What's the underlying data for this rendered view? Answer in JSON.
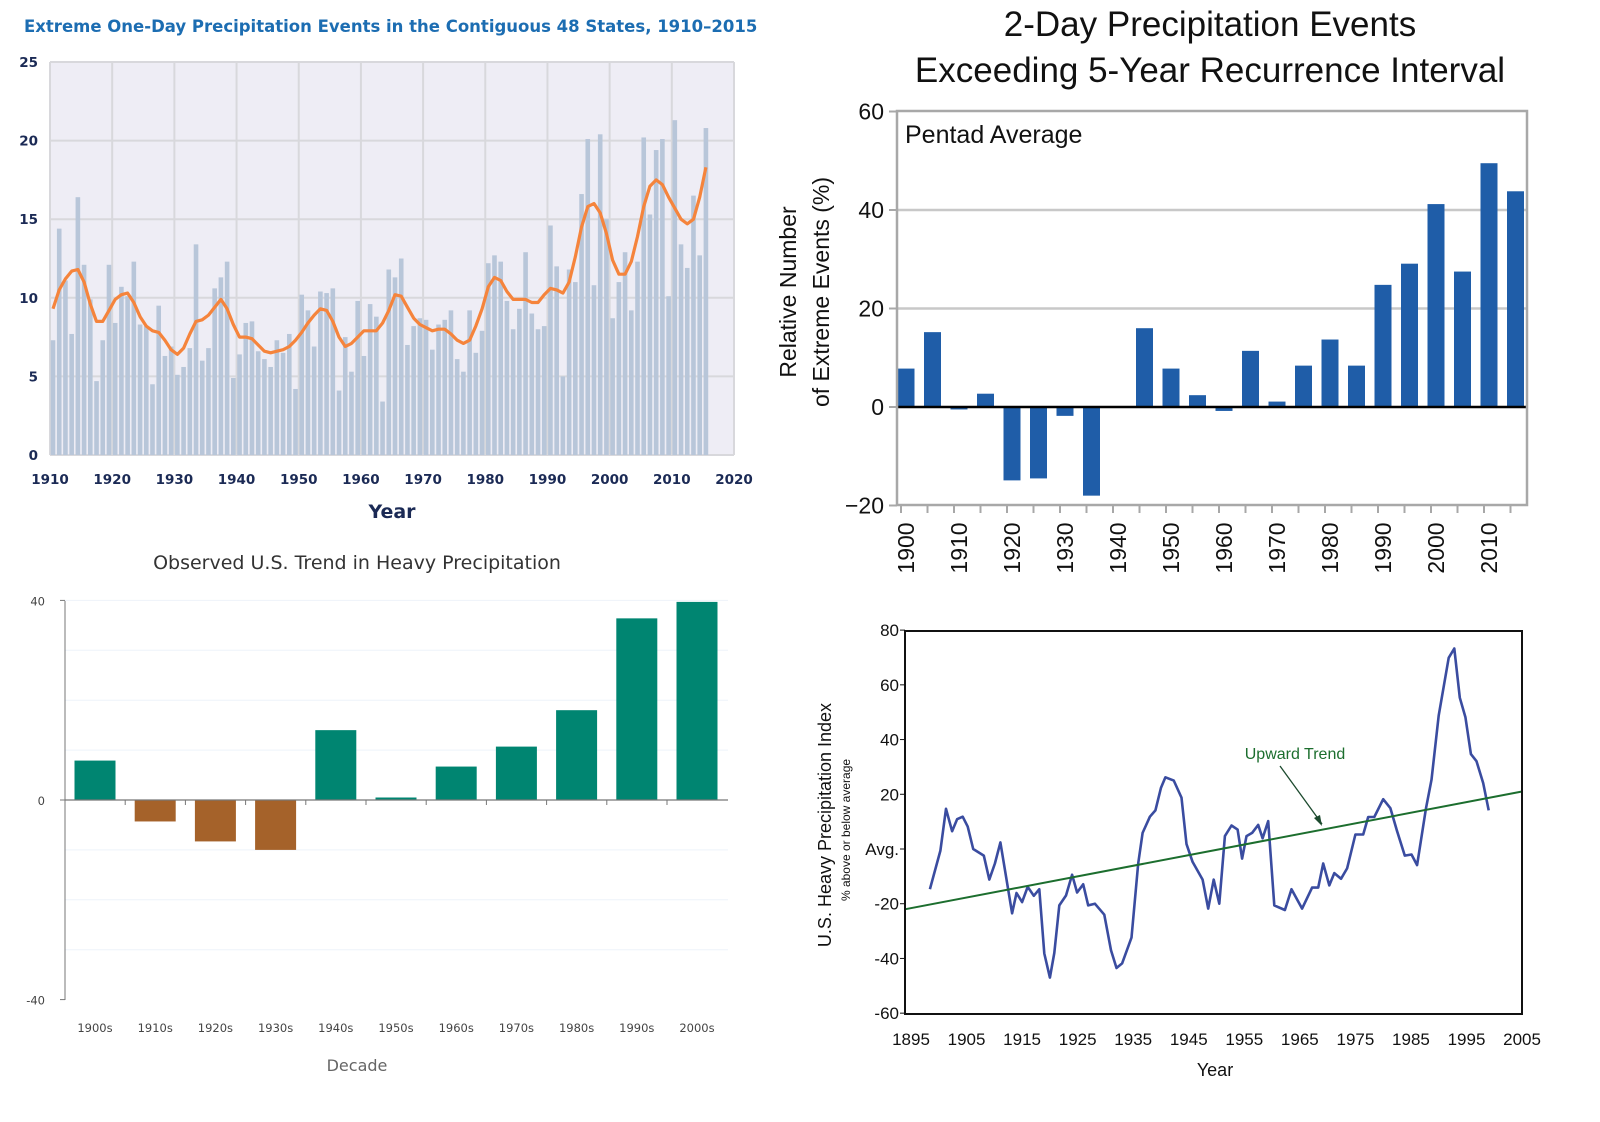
{
  "chart_data": [
    {
      "type": "bar+line",
      "title": "Extreme One-Day Precipitation Events in the Contiguous 48 States, 1910–2015",
      "xlabel": "Year",
      "ylabel": "",
      "xlim": [
        1910,
        2020
      ],
      "ylim": [
        0,
        25
      ],
      "xticks": [
        "1910",
        "1920",
        "1930",
        "1940",
        "1950",
        "1960",
        "1970",
        "1980",
        "1990",
        "2000",
        "2010",
        "2020"
      ],
      "yticks": [
        "0",
        "5",
        "10",
        "15",
        "20",
        "25"
      ],
      "grid": true,
      "colors": {
        "bars": "#b8c6d9",
        "line": "#f5843c",
        "plot_bg": "#eeedf5",
        "title": "#1c6db2"
      },
      "x": [
        1910,
        1911,
        1912,
        1913,
        1914,
        1915,
        1916,
        1917,
        1918,
        1919,
        1920,
        1921,
        1922,
        1923,
        1924,
        1925,
        1926,
        1927,
        1928,
        1929,
        1930,
        1931,
        1932,
        1933,
        1934,
        1935,
        1936,
        1937,
        1938,
        1939,
        1940,
        1941,
        1942,
        1943,
        1944,
        1945,
        1946,
        1947,
        1948,
        1949,
        1950,
        1951,
        1952,
        1953,
        1954,
        1955,
        1956,
        1957,
        1958,
        1959,
        1960,
        1961,
        1962,
        1963,
        1964,
        1965,
        1966,
        1967,
        1968,
        1969,
        1970,
        1971,
        1972,
        1973,
        1974,
        1975,
        1976,
        1977,
        1978,
        1979,
        1980,
        1981,
        1982,
        1983,
        1984,
        1985,
        1986,
        1987,
        1988,
        1989,
        1990,
        1991,
        1992,
        1993,
        1994,
        1995,
        1996,
        1997,
        1998,
        1999,
        2000,
        2001,
        2002,
        2003,
        2004,
        2005,
        2006,
        2007,
        2008,
        2009,
        2010,
        2011,
        2012,
        2013,
        2014,
        2015
      ],
      "series": [
        {
          "kind": "bar",
          "values": [
            7.3,
            14.4,
            11.1,
            7.7,
            16.4,
            12.1,
            9.9,
            4.7,
            7.3,
            12.1,
            8.4,
            10.7,
            10.1,
            12.3,
            8.3,
            8.2,
            4.5,
            9.5,
            6.3,
            6.9,
            5.1,
            5.6,
            6.8,
            13.4,
            6.0,
            6.8,
            10.6,
            11.3,
            12.3,
            4.9,
            6.4,
            8.4,
            8.5,
            6.6,
            6.1,
            5.6,
            7.3,
            6.5,
            7.7,
            4.2,
            10.2,
            9.2,
            6.9,
            10.4,
            10.3,
            10.6,
            4.1,
            7.5,
            5.3,
            9.8,
            6.3,
            9.6,
            8.8,
            3.4,
            11.8,
            11.3,
            12.5,
            7.0,
            8.2,
            8.7,
            8.6,
            6.7,
            8.3,
            8.6,
            9.2,
            6.1,
            5.3,
            9.2,
            6.5,
            7.9,
            12.2,
            12.7,
            12.3,
            9.8,
            8.0,
            9.3,
            12.9,
            9.0,
            8.0,
            8.2,
            14.6,
            12.0,
            5.0,
            11.8,
            11.0,
            16.6,
            20.1,
            10.8,
            20.4,
            15.0,
            8.7,
            11.0,
            12.9,
            9.2,
            12.3,
            20.2,
            15.3,
            19.4,
            20.1,
            10.1,
            21.3,
            13.4,
            11.9,
            16.5,
            12.7,
            20.8
          ]
        },
        {
          "kind": "line",
          "values": [
            9.3,
            10.5,
            11.2,
            11.7,
            11.8,
            11.0,
            9.6,
            8.5,
            8.5,
            9.2,
            9.9,
            10.2,
            10.3,
            9.7,
            8.8,
            8.2,
            7.9,
            7.8,
            7.3,
            6.7,
            6.4,
            6.8,
            7.7,
            8.5,
            8.6,
            8.9,
            9.4,
            9.9,
            9.3,
            8.3,
            7.5,
            7.5,
            7.4,
            7.0,
            6.6,
            6.5,
            6.6,
            6.7,
            6.9,
            7.3,
            7.8,
            8.4,
            8.9,
            9.3,
            9.2,
            8.5,
            7.5,
            6.9,
            7.1,
            7.5,
            7.9,
            7.9,
            7.9,
            8.4,
            9.2,
            10.2,
            10.1,
            9.4,
            8.7,
            8.3,
            8.1,
            7.9,
            8.0,
            8.0,
            7.7,
            7.3,
            7.1,
            7.3,
            8.2,
            9.3,
            10.7,
            11.3,
            11.1,
            10.4,
            9.9,
            9.9,
            9.9,
            9.7,
            9.7,
            10.2,
            10.6,
            10.5,
            10.3,
            11.0,
            12.6,
            14.5,
            15.8,
            16.0,
            15.4,
            14.1,
            12.4,
            11.5,
            11.5,
            12.3,
            13.9,
            15.8,
            17.1,
            17.5,
            17.2,
            16.4,
            15.7,
            15.0,
            14.7,
            15.0,
            16.4,
            18.3
          ]
        }
      ]
    },
    {
      "type": "bar",
      "title": [
        "2-Day Precipitation Events",
        "Exceeding 5-Year Recurrence Interval"
      ],
      "ylabel": [
        "Relative Number",
        "of Extreme Events (%)"
      ],
      "xlabel": "",
      "annotation": "Pentad Average",
      "ylim": [
        -20,
        60
      ],
      "yticks": [
        "−20",
        "0",
        "20",
        "40",
        "60"
      ],
      "xticks": [
        "1900",
        "1910",
        "1920",
        "1930",
        "1940",
        "1950",
        "1960",
        "1970",
        "1980",
        "1990",
        "2000",
        "2010"
      ],
      "grid": true,
      "colors": {
        "bars": "#1f5da8"
      },
      "categories": [
        1900,
        1905,
        1910,
        1915,
        1920,
        1925,
        1930,
        1935,
        1940,
        1945,
        1950,
        1955,
        1960,
        1965,
        1970,
        1975,
        1980,
        1985,
        1990,
        1995,
        2000,
        2005,
        2010,
        2015
      ],
      "values": [
        7.8,
        15.2,
        -0.5,
        2.7,
        -14.9,
        -14.5,
        -1.8,
        -18.0,
        0,
        16.0,
        7.8,
        2.4,
        -0.8,
        11.4,
        1.1,
        8.4,
        13.7,
        8.4,
        24.8,
        29.1,
        41.2,
        27.5,
        49.5,
        43.8
      ]
    },
    {
      "type": "bar",
      "title": "Observed U.S. Trend in Heavy Precipitation",
      "xlabel": "Decade",
      "ylabel": "",
      "ylim": [
        -40,
        40
      ],
      "yticks": [
        "-40",
        "0",
        "40"
      ],
      "grid": true,
      "colors": {
        "positive": "#008571",
        "negative": "#a5622a"
      },
      "categories": [
        "1900s",
        "1910s",
        "1920s",
        "1930s",
        "1940s",
        "1950s",
        "1960s",
        "1970s",
        "1980s",
        "1990s",
        "2000s"
      ],
      "values": [
        7.9,
        -4.3,
        -8.3,
        -10.0,
        14.0,
        0.5,
        6.7,
        10.7,
        18.0,
        36.4,
        39.7
      ]
    },
    {
      "type": "line",
      "xlabel": "Year",
      "ylabel": "U.S. Heavy Precipitation Index",
      "ylabel_sub": "% above or below average",
      "annotation": "Upward Trend",
      "xlim": [
        1895,
        2005
      ],
      "ylim": [
        -60,
        80
      ],
      "xticks": [
        "1895",
        "1905",
        "1915",
        "1925",
        "1935",
        "1945",
        "1955",
        "1965",
        "1975",
        "1985",
        "1995",
        "2005"
      ],
      "yticks": [
        "-60",
        "-40",
        "-20",
        "Avg.",
        "20",
        "40",
        "60",
        "80"
      ],
      "colors": {
        "index": "#3a4ca0",
        "trend": "#1c6e2e"
      },
      "series": [
        {
          "kind": "index",
          "x": [
            1898.4,
            1900.3,
            1901.3,
            1902.4,
            1903.3,
            1904.3,
            1905.2,
            1906.2,
            1908.1,
            1909.1,
            1910.1,
            1911.1,
            1913.2,
            1914,
            1915,
            1916,
            1917.1,
            1918.1,
            1919,
            1920,
            1920.8,
            1921.7,
            1922.9,
            1924,
            1924.9,
            1926,
            1926.9,
            1928.1,
            1929.8,
            1931,
            1932,
            1933,
            1934.7,
            1935.9,
            1936.7,
            1938,
            1939,
            1940,
            1940.8,
            1942.3,
            1943.7,
            1944.6,
            1945.7,
            1947.5,
            1948.5,
            1949.5,
            1950.5,
            1951.5,
            1952.7,
            1953.8,
            1954.6,
            1955.4,
            1956.4,
            1957.5,
            1958.3,
            1959.3,
            1960.4,
            1962.3,
            1963.5,
            1965.4,
            1967.2,
            1968.3,
            1969.2,
            1970.3,
            1971.2,
            1972.4,
            1973.5,
            1975,
            1976.4,
            1977.3,
            1978.4,
            1980,
            1981.3,
            1982.5,
            1983.9,
            1985.1,
            1986.1,
            1987.7,
            1988.7,
            1990,
            1991.8,
            1992.8,
            1993.8,
            1994.8,
            1995.8,
            1996.8,
            1998,
            1999
          ],
          "y": [
            -14.7,
            -0.6,
            14.7,
            6.5,
            10.9,
            11.8,
            8.2,
            0,
            -2.4,
            -11.2,
            -5.3,
            2.4,
            -23.5,
            -16.1,
            -19.4,
            -13.8,
            -17.1,
            -14.7,
            -38.2,
            -47,
            -38,
            -20.6,
            -17,
            -9.4,
            -15.9,
            -12.9,
            -20.6,
            -20,
            -24,
            -37,
            -43.5,
            -41.8,
            -32.4,
            -5.3,
            5.9,
            11.8,
            14.1,
            22.4,
            26.2,
            25,
            18.8,
            1.8,
            -4.7,
            -11.2,
            -21.8,
            -11.2,
            -20,
            4.7,
            8.6,
            7.1,
            -3.5,
            4.7,
            5.9,
            8.8,
            3.9,
            10.2,
            -20.6,
            -22.3,
            -14.7,
            -21.8,
            -14.1,
            -14.1,
            -5.3,
            -13.3,
            -8.8,
            -10.9,
            -7.1,
            5.3,
            5.3,
            11.7,
            11.7,
            18.2,
            14.9,
            6.5,
            -2.4,
            -2,
            -5.9,
            14.7,
            25.3,
            48.8,
            69.9,
            73.3,
            55.3,
            48.2,
            34.7,
            32.1,
            24.1,
            14.1
          ]
        },
        {
          "kind": "trend",
          "x": [
            1894,
            2005
          ],
          "y": [
            -22,
            21
          ]
        }
      ]
    }
  ]
}
